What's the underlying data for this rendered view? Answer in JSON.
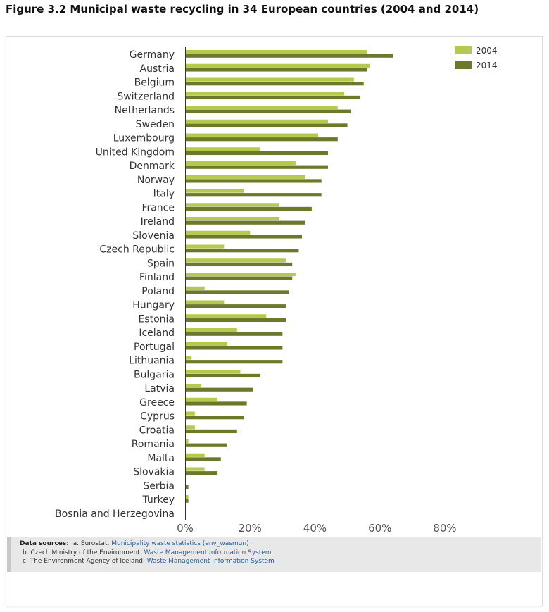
{
  "title": "Figure 3.2 Municipal waste recycling in 34 European countries (2004 and 2014)",
  "colors": {
    "2004": "#b5c951",
    "2014": "#6b7a2a",
    "axis": "#333333"
  },
  "chart_data": {
    "type": "bar",
    "orientation": "horizontal",
    "categories": [
      "Germany",
      "Austria",
      "Belgium",
      "Switzerland",
      "Netherlands",
      "Sweden",
      "Luxembourg",
      "United Kingdom",
      "Denmark",
      "Norway",
      "Italy",
      "France",
      "Ireland",
      "Slovenia",
      "Czech Republic",
      "Spain",
      "Finland",
      "Poland",
      "Hungary",
      "Estonia",
      "Iceland",
      "Portugal",
      "Lithuania",
      "Bulgaria",
      "Latvia",
      "Greece",
      "Cyprus",
      "Croatia",
      "Romania",
      "Malta",
      "Slovakia",
      "Serbia",
      "Turkey",
      "Bosnia and Herzegovina"
    ],
    "series": [
      {
        "name": "2004",
        "values": [
          56,
          57,
          52,
          49,
          47,
          44,
          41,
          23,
          34,
          37,
          18,
          29,
          29,
          20,
          12,
          31,
          34,
          6,
          12,
          25,
          16,
          13,
          2,
          17,
          5,
          10,
          3,
          3,
          1,
          6,
          6,
          0,
          1,
          0
        ]
      },
      {
        "name": "2014",
        "values": [
          64,
          56,
          55,
          54,
          51,
          50,
          47,
          44,
          44,
          42,
          42,
          39,
          37,
          36,
          35,
          33,
          33,
          32,
          31,
          31,
          30,
          30,
          30,
          23,
          21,
          19,
          18,
          16,
          13,
          11,
          10,
          1,
          1,
          0
        ]
      }
    ],
    "xlim": [
      0,
      80
    ],
    "xticks": [
      "0%",
      "20%",
      "40%",
      "60%",
      "80%"
    ],
    "grid": false,
    "legend": "top-right"
  },
  "sources": {
    "heading": "Data sources:",
    "lines": [
      {
        "prefix": "a. Eurostat.",
        "link": "Municipality waste statistics (env_wasmun)"
      },
      {
        "prefix": "b. Czech Ministry of the Environment.",
        "link": "Waste Management Information System"
      },
      {
        "prefix": "c. The Environment Agency of Iceland.",
        "link": "Waste Management Information System"
      }
    ]
  }
}
